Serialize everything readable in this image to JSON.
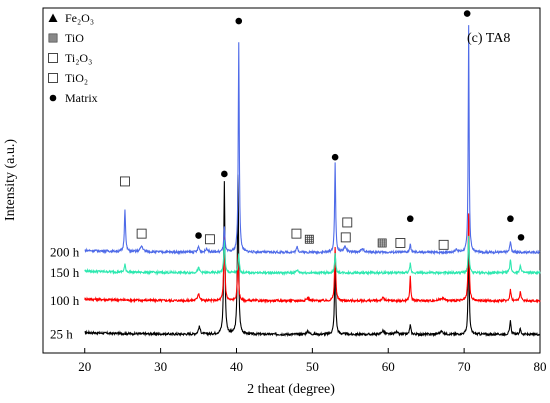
{
  "chart_data": {
    "type": "line",
    "panel_label": "(c) TA8",
    "xlabel": "2 theat (degree)",
    "ylabel": "Intensity (a.u.)",
    "xlim": [
      14.5,
      80
    ],
    "x_ticks": [
      20,
      30,
      40,
      50,
      60,
      70,
      80
    ],
    "y_ticks_shown": false,
    "legend": {
      "placement": "top-left",
      "entries": [
        {
          "name": "Fe2O3",
          "display": "Fe₂O₃",
          "marker": "triangle"
        },
        {
          "name": "TiO",
          "display": "TiO",
          "marker": "grid-square"
        },
        {
          "name": "Ti2O3",
          "display": "Ti₂O₃",
          "marker": "open-square"
        },
        {
          "name": "TiO2",
          "display": "TiO₂",
          "marker": "open-square"
        },
        {
          "name": "Matrix",
          "display": "Matrix",
          "marker": "filled-circle"
        }
      ]
    },
    "x_range": [
      20,
      80
    ],
    "series": [
      {
        "name": "25 h",
        "color": "#000000",
        "baseline": 0.1,
        "noise": 0.006,
        "peaks": [
          [
            35.1,
            0.04,
            0.15
          ],
          [
            38.4,
            0.82,
            0.09
          ],
          [
            40.2,
            0.85,
            0.09
          ],
          [
            49.4,
            0.015,
            0.2
          ],
          [
            53.0,
            0.42,
            0.09
          ],
          [
            59.3,
            0.02,
            0.2
          ],
          [
            61.0,
            0.015,
            0.2
          ],
          [
            62.9,
            0.05,
            0.1
          ],
          [
            67.0,
            0.015,
            0.3
          ],
          [
            70.6,
            0.53,
            0.08
          ],
          [
            76.1,
            0.07,
            0.1
          ],
          [
            77.4,
            0.03,
            0.1
          ]
        ]
      },
      {
        "name": "100 h",
        "color": "#ff0000",
        "baseline": 0.28,
        "noise": 0.006,
        "peaks": [
          [
            35.0,
            0.04,
            0.15
          ],
          [
            38.4,
            0.36,
            0.09
          ],
          [
            40.2,
            0.24,
            0.09
          ],
          [
            49.4,
            0.015,
            0.2
          ],
          [
            53.0,
            0.29,
            0.09
          ],
          [
            59.3,
            0.015,
            0.2
          ],
          [
            62.9,
            0.13,
            0.08
          ],
          [
            67.1,
            0.015,
            0.3
          ],
          [
            70.6,
            0.47,
            0.08
          ],
          [
            76.1,
            0.06,
            0.1
          ],
          [
            77.4,
            0.05,
            0.1
          ]
        ]
      },
      {
        "name": "150 h",
        "color": "#2ee8b0",
        "baseline": 0.43,
        "noise": 0.006,
        "peaks": [
          [
            25.3,
            0.04,
            0.1
          ],
          [
            35.0,
            0.025,
            0.15
          ],
          [
            38.4,
            0.18,
            0.09
          ],
          [
            40.3,
            0.1,
            0.09
          ],
          [
            48.0,
            0.015,
            0.15
          ],
          [
            53.0,
            0.1,
            0.09
          ],
          [
            62.9,
            0.05,
            0.08
          ],
          [
            70.6,
            0.2,
            0.08
          ],
          [
            76.1,
            0.07,
            0.1
          ],
          [
            77.4,
            0.04,
            0.1
          ]
        ]
      },
      {
        "name": "200 h",
        "color": "#4f6be8",
        "baseline": 0.54,
        "noise": 0.006,
        "peaks": [
          [
            25.3,
            0.23,
            0.09
          ],
          [
            27.5,
            0.03,
            0.2
          ],
          [
            35.0,
            0.03,
            0.12
          ],
          [
            36.1,
            0.02,
            0.15
          ],
          [
            38.4,
            0.14,
            0.09
          ],
          [
            40.3,
            1.13,
            0.08
          ],
          [
            48.0,
            0.03,
            0.12
          ],
          [
            54.3,
            0.03,
            0.2
          ],
          [
            53.0,
            0.48,
            0.08
          ],
          [
            56.6,
            0.015,
            0.3
          ],
          [
            62.9,
            0.04,
            0.1
          ],
          [
            69.0,
            0.015,
            0.2
          ],
          [
            70.6,
            1.22,
            0.07
          ],
          [
            76.1,
            0.06,
            0.1
          ]
        ]
      }
    ],
    "y_scale": {
      "min": 0.0,
      "max": 1.85
    },
    "annotations": [
      {
        "marker": "open-square",
        "x": 25.3,
        "y": 0.92
      },
      {
        "marker": "open-square",
        "x": 27.5,
        "y": 0.64
      },
      {
        "marker": "filled-circle",
        "x": 35.0,
        "y": 0.63
      },
      {
        "marker": "open-square",
        "x": 36.5,
        "y": 0.61
      },
      {
        "marker": "filled-circle",
        "x": 38.4,
        "y": 0.96
      },
      {
        "marker": "filled-circle",
        "x": 40.3,
        "y": 1.78
      },
      {
        "marker": "open-square",
        "x": 47.9,
        "y": 0.64
      },
      {
        "marker": "grid-square",
        "x": 49.6,
        "y": 0.61
      },
      {
        "marker": "filled-circle",
        "x": 53.0,
        "y": 1.05
      },
      {
        "marker": "open-square",
        "x": 54.6,
        "y": 0.7
      },
      {
        "marker": "open-square",
        "x": 54.4,
        "y": 0.62
      },
      {
        "marker": "grid-square",
        "x": 59.2,
        "y": 0.59
      },
      {
        "marker": "open-square",
        "x": 61.6,
        "y": 0.59
      },
      {
        "marker": "filled-circle",
        "x": 62.9,
        "y": 0.72
      },
      {
        "marker": "open-square",
        "x": 67.3,
        "y": 0.58
      },
      {
        "marker": "filled-circle",
        "x": 70.4,
        "y": 1.82
      },
      {
        "marker": "filled-circle",
        "x": 76.1,
        "y": 0.72
      },
      {
        "marker": "filled-circle",
        "x": 77.5,
        "y": 0.62
      }
    ]
  }
}
